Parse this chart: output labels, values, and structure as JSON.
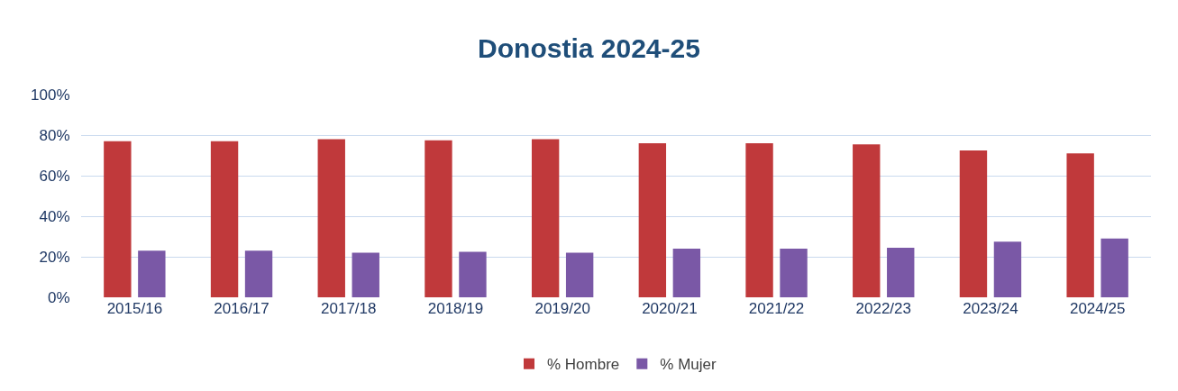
{
  "chart_data": {
    "type": "bar",
    "title": "Donostia 2024-25",
    "categories": [
      "2015/16",
      "2016/17",
      "2017/18",
      "2018/19",
      "2019/20",
      "2020/21",
      "2021/22",
      "2022/23",
      "2023/24",
      "2024/25"
    ],
    "series": [
      {
        "name": "% Hombre",
        "color": "#c0393b",
        "values": [
          77,
          77,
          78,
          77.5,
          78,
          76,
          76,
          75.5,
          72.5,
          71
        ]
      },
      {
        "name": "% Mujer",
        "color": "#7a58a6",
        "values": [
          23,
          23,
          22,
          22.5,
          22,
          24,
          24,
          24.5,
          27.5,
          29
        ]
      }
    ],
    "ylim": [
      0,
      100
    ],
    "yticks": [
      {
        "value": 0,
        "label": "0%"
      },
      {
        "value": 20,
        "label": "20%"
      },
      {
        "value": 40,
        "label": "40%"
      },
      {
        "value": 60,
        "label": "60%"
      },
      {
        "value": 80,
        "label": "80%"
      },
      {
        "value": 100,
        "label": "100%"
      }
    ],
    "grid": "y",
    "legend": "bottom"
  }
}
